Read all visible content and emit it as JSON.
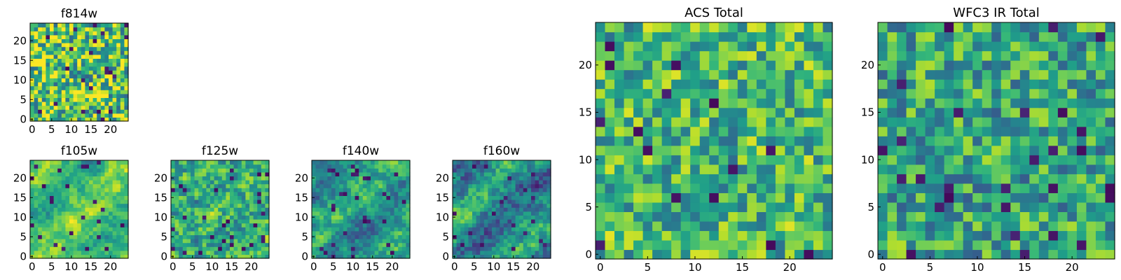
{
  "chart_data": [
    {
      "type": "heatmap",
      "id": "f814w",
      "title": "f814w",
      "grid_size": 25,
      "xticks": [
        0,
        5,
        10,
        15,
        20
      ],
      "yticks": [
        0,
        5,
        10,
        15,
        20
      ],
      "colormap": "viridis",
      "value_range": [
        0,
        1
      ]
    },
    {
      "type": "heatmap",
      "id": "f105w",
      "title": "f105w",
      "grid_size": 25,
      "xticks": [
        0,
        5,
        10,
        15,
        20
      ],
      "yticks": [
        0,
        5,
        10,
        15,
        20
      ],
      "colormap": "viridis",
      "value_range": [
        0,
        1
      ]
    },
    {
      "type": "heatmap",
      "id": "f125w",
      "title": "f125w",
      "grid_size": 25,
      "xticks": [
        0,
        5,
        10,
        15,
        20
      ],
      "yticks": [
        0,
        5,
        10,
        15,
        20
      ],
      "colormap": "viridis",
      "value_range": [
        0,
        1
      ]
    },
    {
      "type": "heatmap",
      "id": "f140w",
      "title": "f140w",
      "grid_size": 25,
      "xticks": [
        0,
        5,
        10,
        15,
        20
      ],
      "yticks": [
        0,
        5,
        10,
        15,
        20
      ],
      "colormap": "viridis",
      "value_range": [
        0,
        1
      ]
    },
    {
      "type": "heatmap",
      "id": "f160w",
      "title": "f160w",
      "grid_size": 25,
      "xticks": [
        0,
        5,
        10,
        15,
        20
      ],
      "yticks": [
        0,
        5,
        10,
        15,
        20
      ],
      "colormap": "viridis",
      "value_range": [
        0,
        1
      ]
    },
    {
      "type": "heatmap",
      "id": "acs-total",
      "title": "ACS Total",
      "grid_size": 25,
      "xticks": [
        0,
        5,
        10,
        15,
        20
      ],
      "yticks": [
        0,
        5,
        10,
        15,
        20
      ],
      "colormap": "viridis",
      "value_range": [
        0,
        1
      ]
    },
    {
      "type": "heatmap",
      "id": "wfc3-ir-total",
      "title": "WFC3 IR Total",
      "grid_size": 25,
      "xticks": [
        0,
        5,
        10,
        15,
        20
      ],
      "yticks": [
        0,
        5,
        10,
        15,
        20
      ],
      "colormap": "viridis",
      "value_range": [
        0,
        1
      ]
    }
  ]
}
